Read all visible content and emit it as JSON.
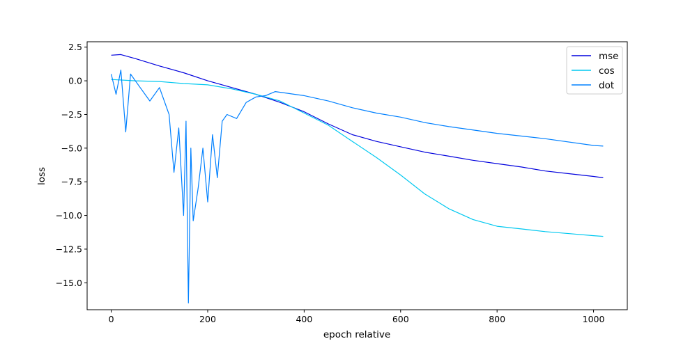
{
  "chart_data": {
    "type": "line",
    "title": "",
    "xlabel": "epoch relative",
    "ylabel": "loss",
    "xlim": [
      -50,
      1070
    ],
    "ylim": [
      -17.0,
      2.9
    ],
    "xticks": [
      0,
      200,
      400,
      600,
      800,
      1000
    ],
    "xtick_labels": [
      "0",
      "200",
      "400",
      "600",
      "800",
      "1000"
    ],
    "yticks": [
      2.5,
      0.0,
      -2.5,
      -5.0,
      -7.5,
      -10.0,
      -12.5,
      -15.0
    ],
    "ytick_labels": [
      "2.5",
      "0.0",
      "−2.5",
      "−5.0",
      "−7.5",
      "−10.0",
      "−12.5",
      "−15.0"
    ],
    "grid": false,
    "legend_position": "top-right",
    "series": [
      {
        "name": "mse",
        "color": "#0000dd",
        "x": [
          0,
          20,
          50,
          100,
          150,
          200,
          250,
          300,
          350,
          400,
          450,
          500,
          550,
          600,
          650,
          700,
          750,
          800,
          850,
          900,
          950,
          1000,
          1020
        ],
        "y": [
          1.9,
          1.95,
          1.65,
          1.1,
          0.6,
          0.0,
          -0.5,
          -1.0,
          -1.6,
          -2.3,
          -3.2,
          -4.0,
          -4.5,
          -4.9,
          -5.3,
          -5.6,
          -5.9,
          -6.15,
          -6.4,
          -6.7,
          -6.9,
          -7.1,
          -7.2
        ]
      },
      {
        "name": "cos",
        "color": "#00c8f0",
        "x": [
          0,
          50,
          100,
          150,
          200,
          250,
          300,
          350,
          400,
          450,
          500,
          550,
          600,
          650,
          700,
          750,
          800,
          850,
          900,
          950,
          1000,
          1020
        ],
        "y": [
          0.1,
          0.0,
          -0.05,
          -0.2,
          -0.3,
          -0.6,
          -1.0,
          -1.5,
          -2.4,
          -3.3,
          -4.5,
          -5.7,
          -7.0,
          -8.4,
          -9.5,
          -10.3,
          -10.8,
          -11.0,
          -11.2,
          -11.35,
          -11.5,
          -11.55
        ]
      },
      {
        "name": "dot",
        "color": "#0080ff",
        "x": [
          0,
          10,
          20,
          30,
          40,
          60,
          80,
          100,
          120,
          130,
          140,
          150,
          155,
          160,
          165,
          170,
          180,
          190,
          200,
          210,
          220,
          230,
          240,
          260,
          280,
          300,
          320,
          340,
          360,
          380,
          400,
          450,
          500,
          550,
          600,
          650,
          700,
          800,
          900,
          1000,
          1020
        ],
        "y": [
          0.5,
          -1.0,
          0.8,
          -3.8,
          0.5,
          -0.5,
          -1.5,
          -0.5,
          -2.5,
          -6.8,
          -3.5,
          -10.0,
          -3.0,
          -16.5,
          -5.0,
          -10.4,
          -8.0,
          -5.0,
          -9.0,
          -4.0,
          -7.2,
          -3.0,
          -2.5,
          -2.8,
          -1.6,
          -1.2,
          -1.1,
          -0.8,
          -0.9,
          -1.0,
          -1.1,
          -1.5,
          -2.0,
          -2.4,
          -2.7,
          -3.1,
          -3.4,
          -3.9,
          -4.3,
          -4.8,
          -4.85
        ]
      }
    ]
  }
}
